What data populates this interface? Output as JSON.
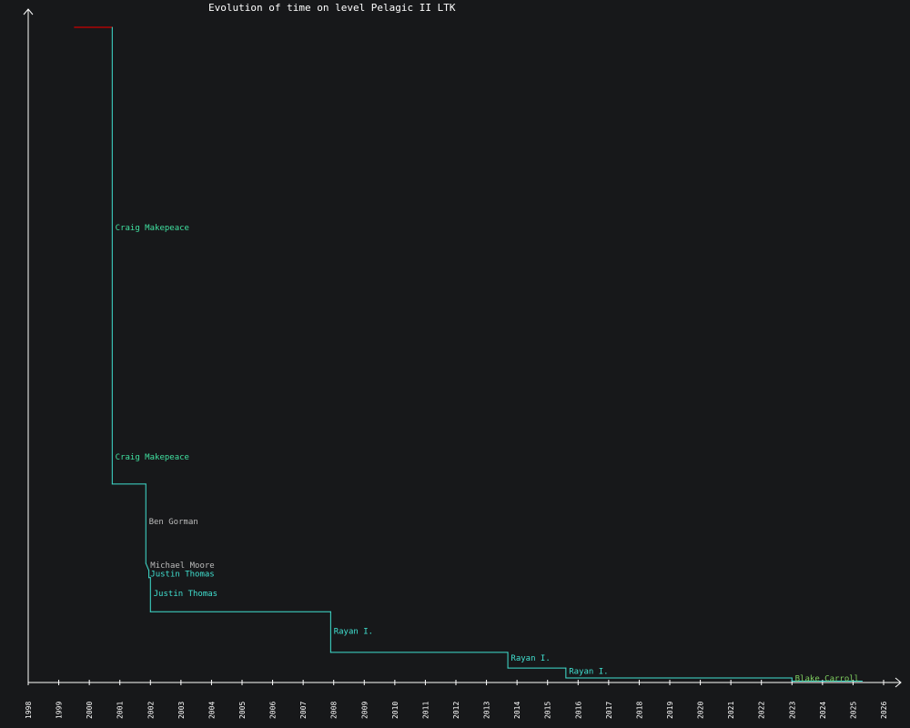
{
  "chart_data": {
    "type": "line",
    "title": "Evolution of time on level Pelagic II LTK",
    "xlabel": "",
    "ylabel": "",
    "x_axis": {
      "unit": "year",
      "range": [
        1998,
        2026
      ],
      "ticks": [
        "1998",
        "1999",
        "2000",
        "2001",
        "2002",
        "2003",
        "2004",
        "2005",
        "2006",
        "2007",
        "2008",
        "2009",
        "2010",
        "2011",
        "2012",
        "2013",
        "2014",
        "2015",
        "2016",
        "2017",
        "2018",
        "2019",
        "2020",
        "2021",
        "2022",
        "2023",
        "2024",
        "2025",
        "2026"
      ]
    },
    "y_axis": {
      "range": [
        0,
        100
      ],
      "tick_labels_shown": false
    },
    "grid": false,
    "legend": "none",
    "initial_segment": {
      "color": "#cc0000",
      "points": [
        {
          "x": 1999.5,
          "y": 100
        },
        {
          "x": 2000.75,
          "y": 100
        }
      ]
    },
    "record_line": {
      "color": "#40e0d0",
      "points": [
        {
          "x": 2000.75,
          "y": 100
        },
        {
          "x": 2000.75,
          "y": 30.3
        },
        {
          "x": 2001.85,
          "y": 30.3
        },
        {
          "x": 2001.85,
          "y": 18.2
        },
        {
          "x": 2001.95,
          "y": 17.1
        },
        {
          "x": 2001.95,
          "y": 16.0
        },
        {
          "x": 2002.0,
          "y": 16.0
        },
        {
          "x": 2002.0,
          "y": 10.8
        },
        {
          "x": 2007.9,
          "y": 10.8
        },
        {
          "x": 2007.9,
          "y": 4.6
        },
        {
          "x": 2013.7,
          "y": 4.6
        },
        {
          "x": 2013.7,
          "y": 2.2
        },
        {
          "x": 2015.6,
          "y": 2.2
        },
        {
          "x": 2015.6,
          "y": 0.7
        },
        {
          "x": 2023.0,
          "y": 0.7
        },
        {
          "x": 2023.0,
          "y": 0.2
        },
        {
          "x": 2025.3,
          "y": 0.2
        }
      ]
    },
    "annotations": [
      {
        "text": "Craig Makepeace",
        "x": 2000.85,
        "y": 69.0,
        "color": "#40e0a0"
      },
      {
        "text": "Craig Makepeace",
        "x": 2000.85,
        "y": 34.0,
        "color": "#40e0a0"
      },
      {
        "text": "Ben Gorman",
        "x": 2001.95,
        "y": 24.2,
        "color": "#bbbbbb"
      },
      {
        "text": "Michael Moore",
        "x": 2002.0,
        "y": 17.5,
        "color": "#bbbbbb"
      },
      {
        "text": "Justin Thomas",
        "x": 2002.0,
        "y": 16.2,
        "color": "#40e0d0"
      },
      {
        "text": "Justin Thomas",
        "x": 2002.1,
        "y": 13.2,
        "color": "#40e0d0"
      },
      {
        "text": "Rayan I.",
        "x": 2008.0,
        "y": 7.4,
        "color": "#40e0d0"
      },
      {
        "text": "Rayan I.",
        "x": 2013.8,
        "y": 3.3,
        "color": "#40e0d0"
      },
      {
        "text": "Rayan I.",
        "x": 2015.7,
        "y": 1.3,
        "color": "#40e0d0"
      },
      {
        "text": "Blake Carroll",
        "x": 2023.1,
        "y": 0.2,
        "color": "#7fd060"
      }
    ],
    "colors": {
      "background": "#17181a",
      "axis": "#ffffff",
      "record_line": "#40e0d0",
      "initial_segment": "#cc0000"
    }
  }
}
